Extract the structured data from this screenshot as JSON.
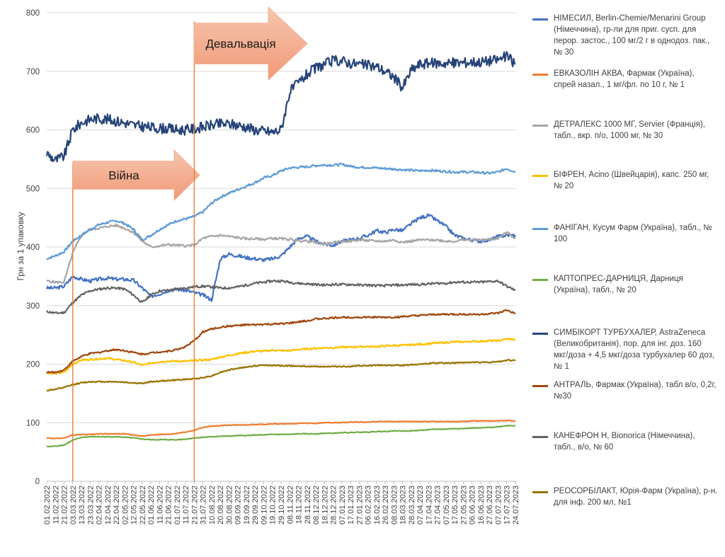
{
  "chart_data": {
    "type": "line",
    "title": "",
    "xlabel": "",
    "ylabel": "Грн за 1 упаковку",
    "ylim": [
      0,
      800
    ],
    "yticks": [
      "0",
      "100",
      "200",
      "300",
      "400",
      "500",
      "600",
      "700",
      "800"
    ],
    "xticks": [
      "01.02.2022",
      "11.02.2022",
      "21.02.2022",
      "03.03.2022",
      "13.03.2022",
      "23.03.2022",
      "02.04.2022",
      "12.04.2022",
      "22.04.2022",
      "02.05.2022",
      "12.05.2022",
      "22.05.2022",
      "01.06.2022",
      "11.06.2022",
      "21.06.2022",
      "01.07.2022",
      "11.07.2022",
      "21.07.2022",
      "31.07.2022",
      "10.08.2022",
      "20.08.2022",
      "30.08.2022",
      "09.09.2022",
      "19.09.2022",
      "29.09.2022",
      "09.10.2022",
      "19.10.2022",
      "29.10.2022",
      "08.11.2022",
      "18.11.2022",
      "28.11.2022",
      "08.12.2022",
      "18.12.2022",
      "28.12.2022",
      "07.01.2023",
      "17.01.2023",
      "27.01.2023",
      "06.02.2023",
      "16.02.2023",
      "26.02.2023",
      "08.03.2023",
      "18.03.2023",
      "28.03.2023",
      "07.04.2023",
      "17.04.2023",
      "27.04.2023",
      "07.05.2023",
      "17.05.2023",
      "27.05.2023",
      "06.06.2023",
      "16.06.2023",
      "27.06.2023",
      "07.07.2023",
      "17.07.2023",
      "24.07.2023"
    ],
    "grid": "horizontal",
    "legend_position": "right",
    "annotations": [
      {
        "label": "Війна",
        "date_index": 3
      },
      {
        "label": "Девальвація",
        "date_index": 17
      }
    ],
    "series": [
      {
        "name": "НІМЕСИЛ, Berlin-Chemie/Menarini Group (Німеччина), гр-ли для приг. сусп. для перор. застос., 100 мг/2 г в однодоз. пак., № 30",
        "color": "#4472C4",
        "values": [
          330,
          330,
          333,
          350,
          345,
          342,
          345,
          347,
          345,
          345,
          343,
          330,
          316,
          320,
          326,
          328,
          326,
          322,
          318,
          310,
          380,
          388,
          385,
          382,
          380,
          378,
          380,
          385,
          400,
          415,
          418,
          410,
          405,
          403,
          410,
          412,
          415,
          420,
          428,
          425,
          430,
          428,
          440,
          450,
          454,
          445,
          435,
          420,
          415,
          412,
          410,
          412,
          418,
          420,
          420
        ]
      },
      {
        "name": "ЕВКАЗОЛІН АКВА, Фармак (Україна), спрей назал., 1 мг/фл. по 10 г, № 1",
        "color": "#ED7D31",
        "values": [
          74,
          73,
          74,
          79,
          80,
          80,
          81,
          81,
          81,
          81,
          79,
          77,
          79,
          80,
          80,
          82,
          84,
          87,
          92,
          94,
          95,
          96,
          96,
          96,
          97,
          97,
          98,
          98,
          98,
          99,
          99,
          99,
          100,
          100,
          100,
          101,
          101,
          101,
          102,
          102,
          102,
          102,
          102,
          102,
          102,
          102,
          102,
          102,
          102,
          103,
          103,
          103,
          103,
          104,
          103
        ]
      },
      {
        "name": "ДЕТРАЛЕКС 1000 МГ, Servier (Франція), табл., вкр. п/о, 1000 мг, № 30",
        "color": "#A5A5A5",
        "values": [
          342,
          340,
          340,
          390,
          420,
          430,
          432,
          435,
          437,
          432,
          425,
          410,
          400,
          402,
          404,
          403,
          402,
          403,
          415,
          418,
          420,
          418,
          416,
          414,
          414,
          413,
          415,
          414,
          413,
          411,
          410,
          408,
          405,
          407,
          410,
          410,
          412,
          411,
          410,
          410,
          412,
          408,
          410,
          412,
          412,
          412,
          410,
          410,
          412,
          412,
          412,
          413,
          415,
          425,
          415
        ]
      },
      {
        "name": "БІФРЕН, Acino (Швейцарія), капс. 250 мг, № 20",
        "color": "#FFC000",
        "values": [
          185,
          184,
          186,
          200,
          207,
          208,
          209,
          210,
          208,
          206,
          203,
          198,
          202,
          204,
          205,
          205,
          205,
          206,
          207,
          208,
          212,
          215,
          218,
          220,
          222,
          222,
          224,
          223,
          223,
          225,
          226,
          227,
          228,
          228,
          229,
          229,
          230,
          230,
          230,
          231,
          232,
          232,
          233,
          234,
          235,
          236,
          237,
          238,
          238,
          239,
          239,
          240,
          240,
          243,
          242
        ]
      },
      {
        "name": "ФАНІГАН, Кусум Фарм (Україна), табл., № 100",
        "color": "#5B9BD5",
        "values": [
          380,
          385,
          392,
          410,
          420,
          430,
          438,
          442,
          445,
          440,
          430,
          412,
          420,
          430,
          438,
          445,
          448,
          452,
          460,
          475,
          485,
          492,
          498,
          504,
          510,
          518,
          522,
          530,
          535,
          536,
          537,
          539,
          540,
          540,
          541,
          538,
          536,
          536,
          535,
          534,
          533,
          532,
          531,
          530,
          531,
          530,
          529,
          528,
          528,
          528,
          527,
          526,
          528,
          534,
          528
        ]
      },
      {
        "name": "КАПТОПРЕС-ДАРНИЦЯ, Дарниця (Україна), табл., № 20",
        "color": "#70AD47",
        "values": [
          59,
          60,
          62,
          70,
          75,
          76,
          76,
          76,
          76,
          75,
          74,
          72,
          71,
          71,
          71,
          71,
          72,
          74,
          75,
          76,
          77,
          77,
          78,
          78,
          79,
          79,
          80,
          80,
          80,
          81,
          81,
          81,
          82,
          82,
          83,
          83,
          84,
          84,
          85,
          85,
          86,
          86,
          86,
          87,
          88,
          89,
          89,
          90,
          90,
          91,
          91,
          92,
          93,
          95,
          95
        ]
      },
      {
        "name": "СИМБІКОРТ ТУРБУХАЛЕР, AstraZeneca (Великобританія), пор. для інг. доз. 160 мкг/доза + 4,5 мкг/доза турбухалер 60 доз, № 1",
        "color": "#264478",
        "values": [
          560,
          548,
          555,
          600,
          612,
          618,
          620,
          618,
          615,
          612,
          608,
          606,
          604,
          603,
          602,
          600,
          600,
          602,
          605,
          608,
          610,
          610,
          608,
          605,
          600,
          598,
          596,
          600,
          665,
          680,
          695,
          705,
          712,
          718,
          718,
          714,
          712,
          710,
          708,
          700,
          690,
          672,
          702,
          712,
          714,
          714,
          714,
          714,
          715,
          716,
          716,
          718,
          720,
          726,
          712
        ]
      },
      {
        "name": "АНТРАЛЬ, Фармак (Україна), табл в/о, 0,2г, №30",
        "color": "#9E480E",
        "values": [
          186,
          186,
          190,
          205,
          213,
          218,
          220,
          223,
          225,
          223,
          220,
          217,
          219,
          221,
          222,
          225,
          230,
          240,
          255,
          260,
          263,
          265,
          266,
          267,
          267,
          268,
          268,
          269,
          270,
          272,
          274,
          277,
          278,
          279,
          280,
          280,
          280,
          280,
          280,
          280,
          280,
          281,
          282,
          283,
          284,
          285,
          285,
          285,
          285,
          285,
          285,
          286,
          287,
          292,
          286
        ]
      },
      {
        "name": "КАНЕФРОН Н, Bionorica (Німеччина), табл., в/о, № 60",
        "color": "#636363",
        "values": [
          290,
          287,
          288,
          305,
          318,
          325,
          328,
          330,
          330,
          328,
          318,
          305,
          318,
          325,
          326,
          328,
          330,
          332,
          333,
          332,
          330,
          330,
          332,
          335,
          338,
          340,
          342,
          342,
          340,
          338,
          337,
          336,
          335,
          336,
          336,
          336,
          335,
          335,
          334,
          334,
          335,
          335,
          336,
          336,
          337,
          338,
          338,
          340,
          340,
          340,
          340,
          341,
          342,
          333,
          326
        ]
      },
      {
        "name": "РЕОСОРБІЛАКТ, Юрія-Фарм (Україна), р-н. для інф. 200 мл, №1",
        "color": "#997300",
        "values": [
          155,
          157,
          160,
          165,
          168,
          170,
          170,
          170,
          170,
          169,
          168,
          167,
          170,
          171,
          172,
          173,
          174,
          175,
          177,
          180,
          186,
          190,
          193,
          195,
          197,
          198,
          198,
          197,
          197,
          197,
          196,
          196,
          196,
          196,
          196,
          196,
          197,
          197,
          198,
          198,
          198,
          198,
          199,
          200,
          201,
          202,
          202,
          202,
          203,
          203,
          203,
          203,
          204,
          207,
          206
        ]
      }
    ]
  }
}
